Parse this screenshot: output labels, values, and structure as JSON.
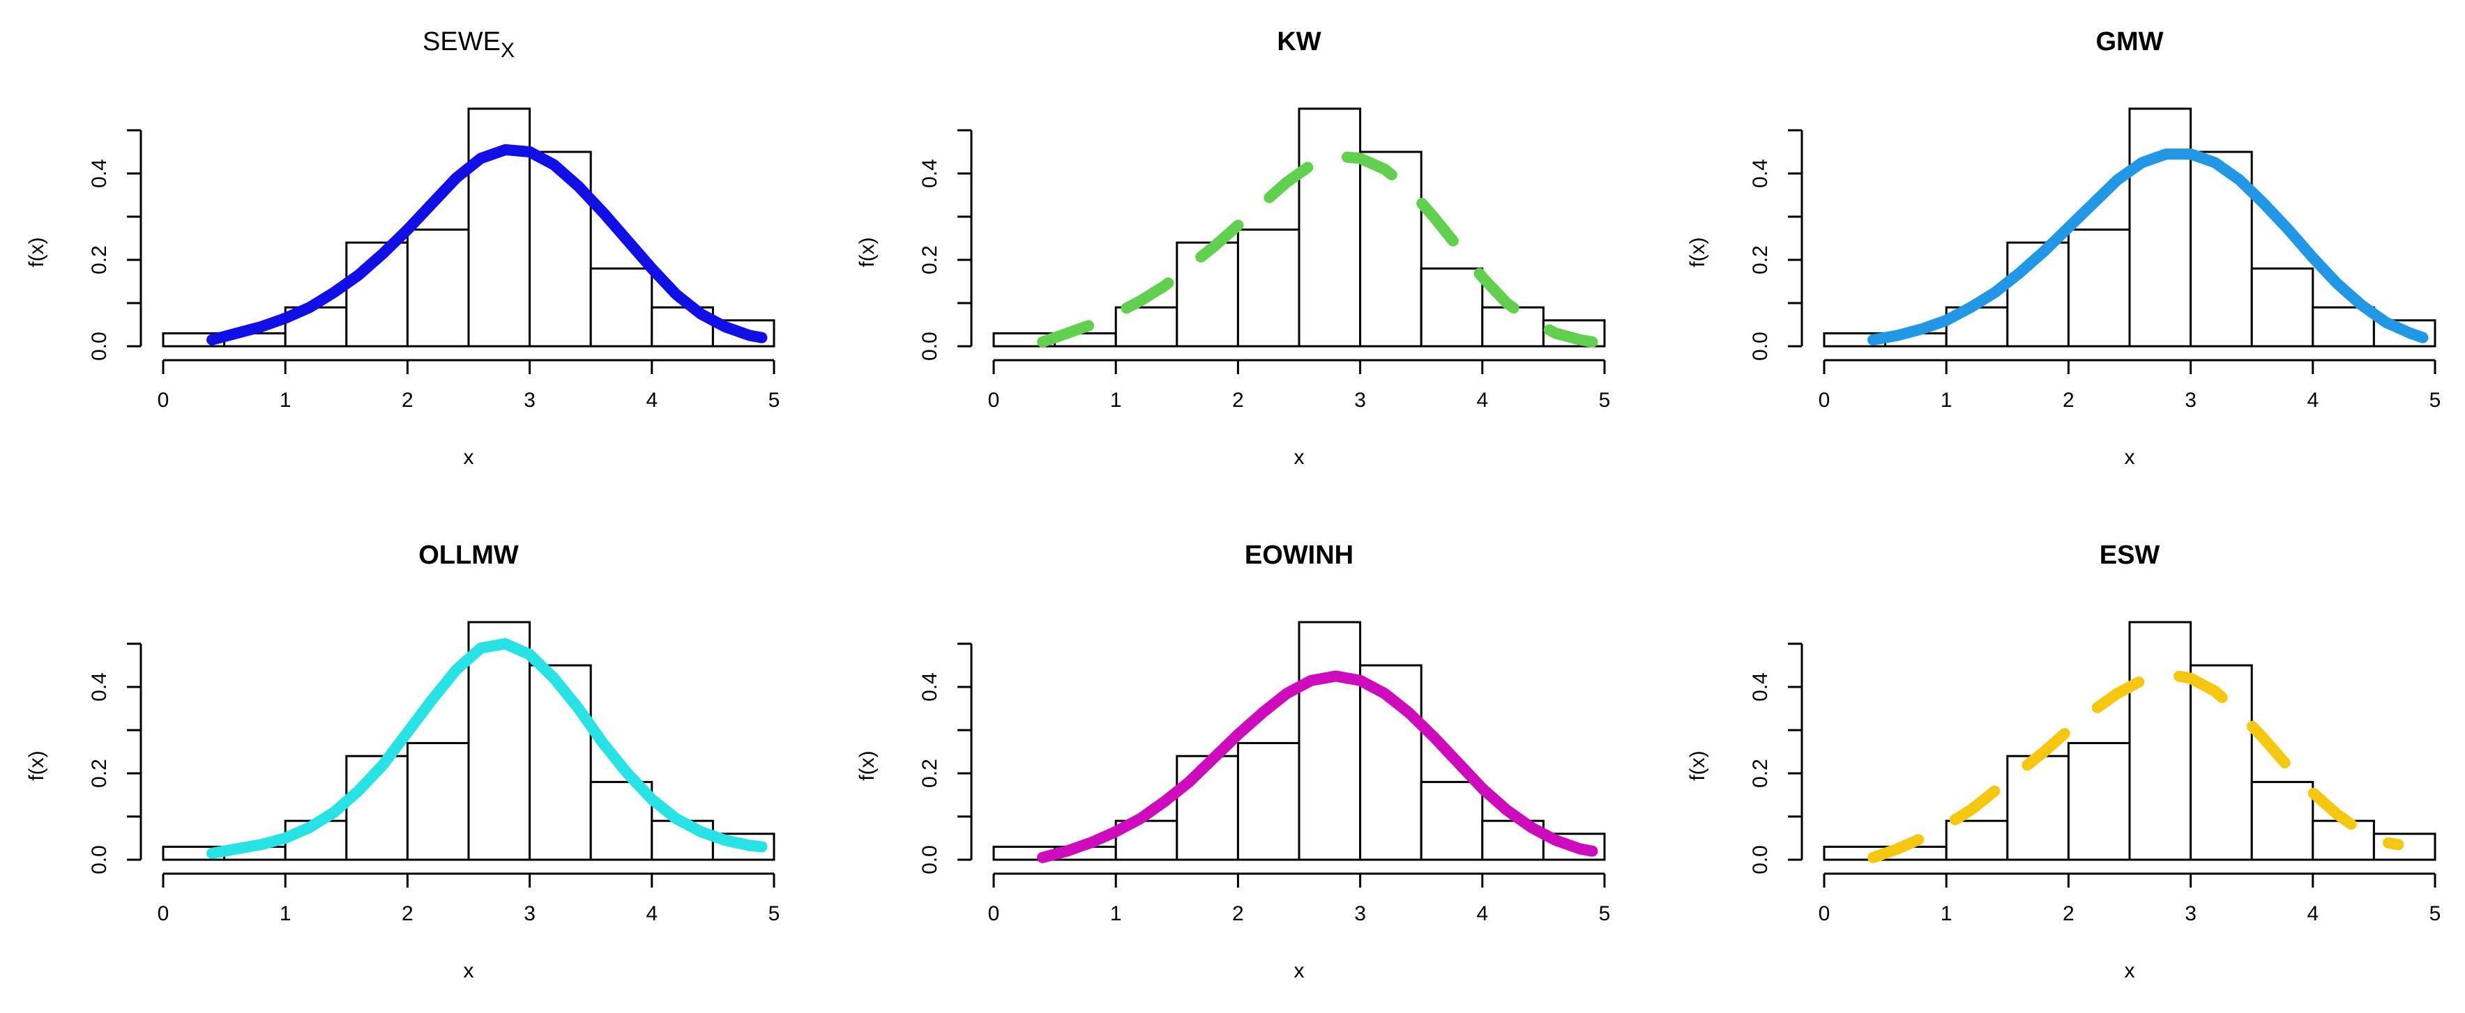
{
  "chart_data": [
    {
      "type": "histogram-with-density",
      "title": "SEWE",
      "title_subscript": "X",
      "title_bold": false,
      "xlabel": "x",
      "ylabel": "f(x)",
      "xlim": [
        0,
        5
      ],
      "ylim": [
        0,
        0.5
      ],
      "xticks": [
        "0",
        "1",
        "2",
        "3",
        "4",
        "5"
      ],
      "yticks": [
        "0.0",
        "0.2",
        "0.4"
      ],
      "histogram": {
        "bin_edges": [
          0,
          0.5,
          1,
          1.5,
          2,
          2.5,
          3,
          3.5,
          4,
          4.5,
          5
        ],
        "densities": [
          0.03,
          0.03,
          0.09,
          0.24,
          0.27,
          0.55,
          0.45,
          0.18,
          0.09,
          0.06
        ]
      },
      "curve": {
        "name": "SEWE_X",
        "color": "#0f0fe6",
        "style": "solid",
        "x": [
          0.4,
          0.6,
          0.8,
          1.0,
          1.2,
          1.4,
          1.6,
          1.8,
          2.0,
          2.2,
          2.4,
          2.6,
          2.8,
          3.0,
          3.2,
          3.4,
          3.6,
          3.8,
          4.0,
          4.2,
          4.4,
          4.6,
          4.8,
          4.9
        ],
        "y": [
          0.015,
          0.03,
          0.045,
          0.065,
          0.09,
          0.125,
          0.165,
          0.215,
          0.27,
          0.33,
          0.39,
          0.435,
          0.455,
          0.45,
          0.42,
          0.37,
          0.31,
          0.245,
          0.18,
          0.12,
          0.075,
          0.045,
          0.025,
          0.02
        ]
      }
    },
    {
      "type": "histogram-with-density",
      "title": "KW",
      "title_subscript": "",
      "title_bold": true,
      "xlabel": "x",
      "ylabel": "f(x)",
      "xlim": [
        0,
        5
      ],
      "ylim": [
        0,
        0.5
      ],
      "xticks": [
        "0",
        "1",
        "2",
        "3",
        "4",
        "5"
      ],
      "yticks": [
        "0.0",
        "0.2",
        "0.4"
      ],
      "histogram": {
        "bin_edges": [
          0,
          0.5,
          1,
          1.5,
          2,
          2.5,
          3,
          3.5,
          4,
          4.5,
          5
        ],
        "densities": [
          0.03,
          0.03,
          0.09,
          0.24,
          0.27,
          0.55,
          0.45,
          0.18,
          0.09,
          0.06
        ]
      },
      "curve": {
        "name": "KW",
        "color": "#61d04f",
        "style": "dashed",
        "x": [
          0.4,
          0.6,
          0.8,
          1.0,
          1.2,
          1.4,
          1.6,
          1.8,
          2.0,
          2.2,
          2.4,
          2.6,
          2.8,
          3.0,
          3.2,
          3.4,
          3.6,
          3.8,
          4.0,
          4.2,
          4.4,
          4.6,
          4.8,
          4.9
        ],
        "y": [
          0.01,
          0.03,
          0.05,
          0.075,
          0.105,
          0.14,
          0.185,
          0.23,
          0.28,
          0.33,
          0.38,
          0.42,
          0.44,
          0.435,
          0.41,
          0.365,
          0.3,
          0.23,
          0.16,
          0.1,
          0.06,
          0.03,
          0.015,
          0.01
        ]
      }
    },
    {
      "type": "histogram-with-density",
      "title": "GMW",
      "title_subscript": "",
      "title_bold": true,
      "xlabel": "x",
      "ylabel": "f(x)",
      "xlim": [
        0,
        5
      ],
      "ylim": [
        0,
        0.5
      ],
      "xticks": [
        "0",
        "1",
        "2",
        "3",
        "4",
        "5"
      ],
      "yticks": [
        "0.0",
        "0.2",
        "0.4"
      ],
      "histogram": {
        "bin_edges": [
          0,
          0.5,
          1,
          1.5,
          2,
          2.5,
          3,
          3.5,
          4,
          4.5,
          5
        ],
        "densities": [
          0.03,
          0.03,
          0.09,
          0.24,
          0.27,
          0.55,
          0.45,
          0.18,
          0.09,
          0.06
        ]
      },
      "curve": {
        "name": "GMW",
        "color": "#2297e6",
        "style": "solid",
        "x": [
          0.4,
          0.6,
          0.8,
          1.0,
          1.2,
          1.4,
          1.6,
          1.8,
          2.0,
          2.2,
          2.4,
          2.6,
          2.8,
          3.0,
          3.2,
          3.4,
          3.6,
          3.8,
          4.0,
          4.2,
          4.4,
          4.6,
          4.8,
          4.9
        ],
        "y": [
          0.015,
          0.025,
          0.04,
          0.06,
          0.09,
          0.125,
          0.17,
          0.22,
          0.275,
          0.33,
          0.385,
          0.425,
          0.445,
          0.445,
          0.425,
          0.385,
          0.33,
          0.27,
          0.205,
          0.145,
          0.095,
          0.055,
          0.03,
          0.02
        ]
      }
    },
    {
      "type": "histogram-with-density",
      "title": "OLLMW",
      "title_subscript": "",
      "title_bold": true,
      "xlabel": "x",
      "ylabel": "f(x)",
      "xlim": [
        0,
        5
      ],
      "ylim": [
        0,
        0.5
      ],
      "xticks": [
        "0",
        "1",
        "2",
        "3",
        "4",
        "5"
      ],
      "yticks": [
        "0.0",
        "0.2",
        "0.4"
      ],
      "histogram": {
        "bin_edges": [
          0,
          0.5,
          1,
          1.5,
          2,
          2.5,
          3,
          3.5,
          4,
          4.5,
          5
        ],
        "densities": [
          0.03,
          0.03,
          0.09,
          0.24,
          0.27,
          0.55,
          0.45,
          0.18,
          0.09,
          0.06
        ]
      },
      "curve": {
        "name": "OLLMW",
        "color": "#28e2e5",
        "style": "solid",
        "x": [
          0.4,
          0.6,
          0.8,
          1.0,
          1.2,
          1.4,
          1.6,
          1.8,
          2.0,
          2.2,
          2.4,
          2.6,
          2.8,
          3.0,
          3.2,
          3.4,
          3.6,
          3.8,
          4.0,
          4.2,
          4.4,
          4.6,
          4.8,
          4.9
        ],
        "y": [
          0.015,
          0.025,
          0.035,
          0.05,
          0.075,
          0.11,
          0.16,
          0.22,
          0.295,
          0.37,
          0.44,
          0.49,
          0.5,
          0.475,
          0.42,
          0.35,
          0.27,
          0.2,
          0.14,
          0.095,
          0.065,
          0.045,
          0.033,
          0.03
        ]
      }
    },
    {
      "type": "histogram-with-density",
      "title": "EOWINH",
      "title_subscript": "",
      "title_bold": true,
      "xlabel": "x",
      "ylabel": "f(x)",
      "xlim": [
        0,
        5
      ],
      "ylim": [
        0,
        0.5
      ],
      "xticks": [
        "0",
        "1",
        "2",
        "3",
        "4",
        "5"
      ],
      "yticks": [
        "0.0",
        "0.2",
        "0.4"
      ],
      "histogram": {
        "bin_edges": [
          0,
          0.5,
          1,
          1.5,
          2,
          2.5,
          3,
          3.5,
          4,
          4.5,
          5
        ],
        "densities": [
          0.03,
          0.03,
          0.09,
          0.24,
          0.27,
          0.55,
          0.45,
          0.18,
          0.09,
          0.06
        ]
      },
      "curve": {
        "name": "EOWINH",
        "color": "#cd0bbc",
        "style": "solid",
        "x": [
          0.4,
          0.6,
          0.8,
          1.0,
          1.2,
          1.4,
          1.6,
          1.8,
          2.0,
          2.2,
          2.4,
          2.6,
          2.8,
          3.0,
          3.2,
          3.4,
          3.6,
          3.8,
          4.0,
          4.2,
          4.4,
          4.6,
          4.8,
          4.9
        ],
        "y": [
          0.005,
          0.02,
          0.04,
          0.065,
          0.095,
          0.135,
          0.18,
          0.235,
          0.29,
          0.34,
          0.385,
          0.415,
          0.425,
          0.415,
          0.385,
          0.34,
          0.285,
          0.225,
          0.165,
          0.115,
          0.075,
          0.045,
          0.025,
          0.02
        ]
      }
    },
    {
      "type": "histogram-with-density",
      "title": "ESW",
      "title_subscript": "",
      "title_bold": true,
      "xlabel": "x",
      "ylabel": "f(x)",
      "xlim": [
        0,
        5
      ],
      "ylim": [
        0,
        0.5
      ],
      "xticks": [
        "0",
        "1",
        "2",
        "3",
        "4",
        "5"
      ],
      "yticks": [
        "0.0",
        "0.2",
        "0.4"
      ],
      "histogram": {
        "bin_edges": [
          0,
          0.5,
          1,
          1.5,
          2,
          2.5,
          3,
          3.5,
          4,
          4.5,
          5
        ],
        "densities": [
          0.03,
          0.03,
          0.09,
          0.24,
          0.27,
          0.55,
          0.45,
          0.18,
          0.09,
          0.06
        ]
      },
      "curve": {
        "name": "ESW",
        "color": "#f5c710",
        "style": "dashed",
        "x": [
          0.4,
          0.6,
          0.8,
          1.0,
          1.2,
          1.4,
          1.6,
          1.8,
          2.0,
          2.2,
          2.4,
          2.6,
          2.8,
          3.0,
          3.2,
          3.4,
          3.6,
          3.8,
          4.0,
          4.2,
          4.4,
          4.6,
          4.7
        ],
        "y": [
          0.005,
          0.025,
          0.05,
          0.08,
          0.115,
          0.16,
          0.205,
          0.25,
          0.3,
          0.345,
          0.385,
          0.415,
          0.43,
          0.42,
          0.39,
          0.34,
          0.28,
          0.215,
          0.155,
          0.105,
          0.065,
          0.04,
          0.035
        ]
      }
    }
  ]
}
